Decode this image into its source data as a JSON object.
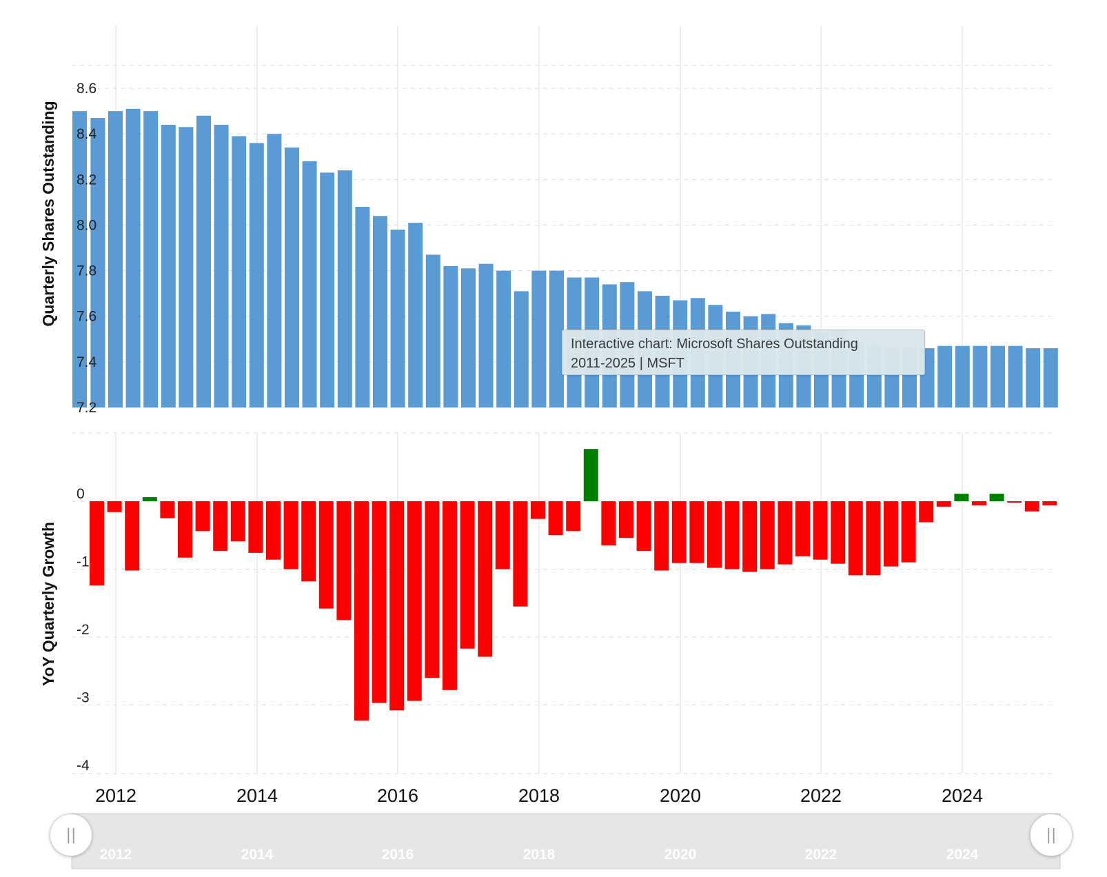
{
  "colors": {
    "shares_bar": "#5b9bd5",
    "growth_positive": "#008000",
    "growth_negative": "#ff0000",
    "grid": "#dedede",
    "navigator_bg": "#e6e6e6",
    "navigator_text": "#ffffff"
  },
  "tooltip": {
    "line1": "Interactive chart: Microsoft Shares Outstanding",
    "line2": "2011-2025 | MSFT"
  },
  "navigator": {
    "years": [
      "2012",
      "2014",
      "2016",
      "2018",
      "2020",
      "2022",
      "2024"
    ],
    "left_handle_icon": "grip-icon",
    "right_handle_icon": "grip-icon",
    "handle_glyph": "||"
  },
  "chart_data": [
    {
      "type": "bar",
      "ylabel": "Quarterly Shares Outstanding",
      "ylim": [
        7.2,
        8.7
      ],
      "yticks": [
        "8.6",
        "8.4",
        "8.2",
        "8.0",
        "7.8",
        "7.6",
        "7.4",
        "7.2"
      ],
      "xticks": [
        "2012",
        "2014",
        "2016",
        "2018",
        "2020",
        "2022",
        "2024"
      ],
      "grid": true,
      "values": [
        8.5,
        8.47,
        8.5,
        8.51,
        8.5,
        8.44,
        8.43,
        8.48,
        8.44,
        8.39,
        8.36,
        8.4,
        8.34,
        8.28,
        8.23,
        8.24,
        8.08,
        8.04,
        7.98,
        8.01,
        7.87,
        7.82,
        7.81,
        7.83,
        7.8,
        7.71,
        7.8,
        7.8,
        7.77,
        7.77,
        7.74,
        7.75,
        7.71,
        7.69,
        7.67,
        7.68,
        7.65,
        7.62,
        7.6,
        7.61,
        7.57,
        7.56,
        7.53,
        7.54,
        7.49,
        7.47,
        7.46,
        7.46,
        7.46,
        7.47,
        7.47,
        7.47,
        7.47,
        7.47,
        7.46,
        7.46
      ]
    },
    {
      "type": "bar",
      "ylabel": "YoY Quarterly Growth",
      "ylim": [
        -4,
        1
      ],
      "yticks": [
        "0",
        "-1",
        "-2",
        "-3",
        "-4"
      ],
      "grid": true,
      "values": [
        -1.24,
        -0.16,
        -1.02,
        0.06,
        -0.25,
        -0.83,
        -0.44,
        -0.73,
        -0.59,
        -0.76,
        -0.86,
        -1.0,
        -1.18,
        -1.58,
        -1.75,
        -3.23,
        -2.97,
        -3.08,
        -2.94,
        -2.6,
        -2.78,
        -2.17,
        -2.29,
        -1.0,
        -1.55,
        -0.26,
        -0.5,
        -0.44,
        0.77,
        -0.65,
        -0.54,
        -0.73,
        -1.02,
        -0.91,
        -0.91,
        -0.98,
        -1.0,
        -1.04,
        -1.0,
        -0.93,
        -0.81,
        -0.86,
        -0.92,
        -1.09,
        -1.09,
        -0.96,
        -0.9,
        -0.31,
        -0.08,
        0.11,
        -0.06,
        0.11,
        -0.02,
        -0.15,
        -0.06
      ]
    }
  ]
}
